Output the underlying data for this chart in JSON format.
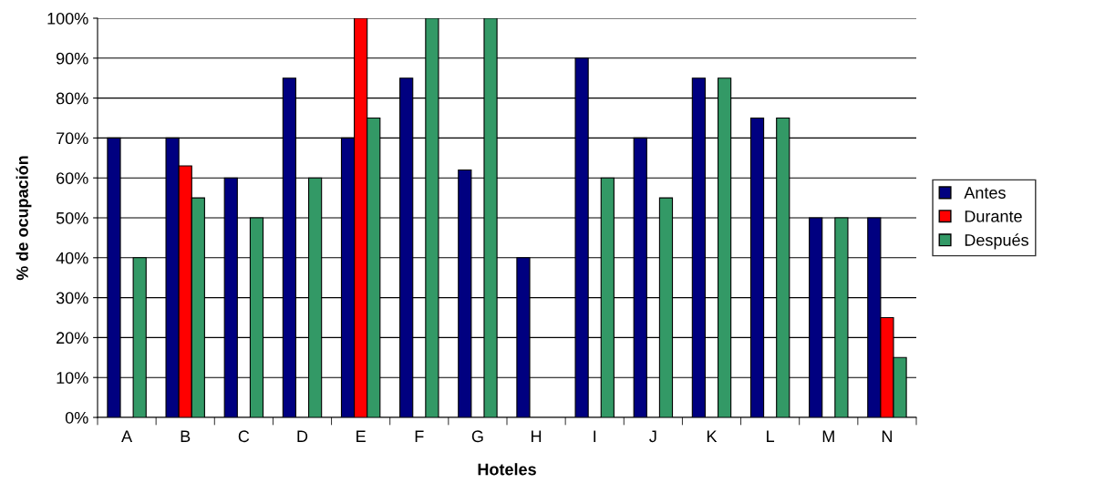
{
  "chart_data": {
    "type": "bar",
    "xlabel": "Hoteles",
    "ylabel": "% de ocupación",
    "categories": [
      "A",
      "B",
      "C",
      "D",
      "E",
      "F",
      "G",
      "H",
      "I",
      "J",
      "K",
      "L",
      "M",
      "N"
    ],
    "series": [
      {
        "name": "Antes",
        "color": "#000080",
        "values": [
          70,
          70,
          60,
          85,
          70,
          85,
          62,
          40,
          90,
          70,
          85,
          75,
          50,
          50
        ]
      },
      {
        "name": "Durante",
        "color": "#ff0000",
        "values": [
          null,
          63,
          null,
          null,
          100,
          null,
          null,
          null,
          null,
          null,
          null,
          null,
          null,
          25
        ]
      },
      {
        "name": "Después",
        "color": "#339966",
        "values": [
          40,
          55,
          50,
          60,
          75,
          100,
          100,
          null,
          60,
          55,
          85,
          75,
          50,
          15
        ]
      }
    ],
    "ylim": [
      0,
      100
    ],
    "yticks": [
      {
        "value": 0,
        "label": "0%"
      },
      {
        "value": 10,
        "label": "10%"
      },
      {
        "value": 20,
        "label": "20%"
      },
      {
        "value": 30,
        "label": "30%"
      },
      {
        "value": 40,
        "label": "40%"
      },
      {
        "value": 50,
        "label": "50%"
      },
      {
        "value": 60,
        "label": "60%"
      },
      {
        "value": 70,
        "label": "70%"
      },
      {
        "value": 80,
        "label": "80%"
      },
      {
        "value": 90,
        "label": "90%"
      },
      {
        "value": 100,
        "label": "100%"
      }
    ],
    "grid": "y",
    "legend": "right"
  }
}
